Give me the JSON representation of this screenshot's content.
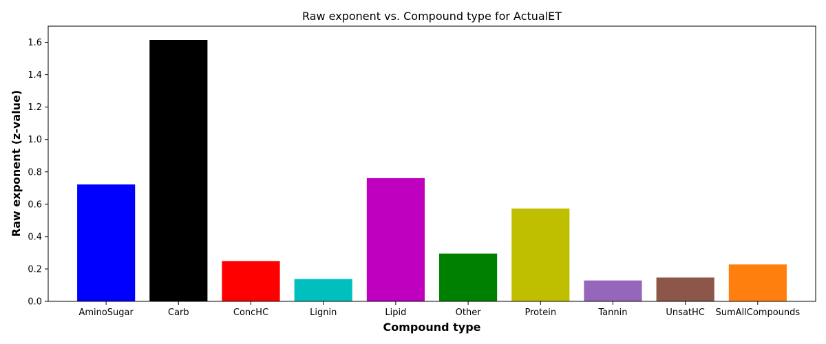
{
  "chart_data": {
    "type": "bar",
    "title": "Raw exponent vs. Compound type for ActualET",
    "xlabel": "Compound type",
    "ylabel": "Raw exponent (z-value)",
    "ylim": [
      0,
      1.7
    ],
    "yticks": [
      0.0,
      0.2,
      0.4,
      0.6,
      0.8,
      1.0,
      1.2,
      1.4,
      1.6
    ],
    "ytick_labels": [
      "0.0",
      "0.2",
      "0.4",
      "0.6",
      "0.8",
      "1.0",
      "1.2",
      "1.4",
      "1.6"
    ],
    "grid": false,
    "legend": "none",
    "categories": [
      "AminoSugar",
      "Carb",
      "ConcHC",
      "Lignin",
      "Lipid",
      "Other",
      "Protein",
      "Tannin",
      "UnsatHC",
      "SumAllCompounds"
    ],
    "values": [
      0.722,
      1.615,
      0.249,
      0.138,
      0.761,
      0.295,
      0.573,
      0.129,
      0.147,
      0.228
    ],
    "colors": [
      "#0000ff",
      "#000000",
      "#ff0000",
      "#00bfbf",
      "#bf00bf",
      "#008000",
      "#bfbf00",
      "#9467bd",
      "#8c564b",
      "#ff7f0e"
    ]
  }
}
